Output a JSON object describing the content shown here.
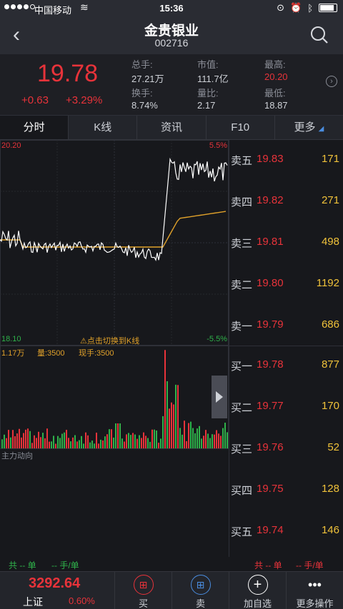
{
  "status": {
    "carrier": "中国移动",
    "time": "15:36"
  },
  "header": {
    "title": "金贵银业",
    "code": "002716"
  },
  "quote": {
    "price": "19.78",
    "change": "+0.63",
    "change_pct": "+3.29%",
    "stats": [
      {
        "k": "总手:",
        "v": "27.21万"
      },
      {
        "k": "市值:",
        "v": "111.7亿"
      },
      {
        "k": "最高:",
        "v": "20.20"
      },
      {
        "k": "换手:",
        "v": "8.74%"
      },
      {
        "k": "量比:",
        "v": "2.17"
      },
      {
        "k": "最低:",
        "v": "18.87"
      }
    ]
  },
  "tabs": [
    "分时",
    "K线",
    "资讯",
    "F10",
    "更多"
  ],
  "chart": {
    "price_high": "20.20",
    "price_low": "18.10",
    "pct_high": "5.5%",
    "pct_low": "-5.5%",
    "switch_hint": "⚠点击切换到K线",
    "vol_max": "1.17万",
    "vol_label": "量:3500",
    "cur_hand_label": "现手:3500",
    "main_flow_label": "主力动向"
  },
  "order_book": {
    "sell": [
      {
        "label": "卖五",
        "price": "19.83",
        "vol": "171"
      },
      {
        "label": "卖四",
        "price": "19.82",
        "vol": "271"
      },
      {
        "label": "卖三",
        "price": "19.81",
        "vol": "498"
      },
      {
        "label": "卖二",
        "price": "19.80",
        "vol": "1192"
      },
      {
        "label": "卖一",
        "price": "19.79",
        "vol": "686"
      }
    ],
    "buy": [
      {
        "label": "买一",
        "price": "19.78",
        "vol": "877"
      },
      {
        "label": "买二",
        "price": "19.77",
        "vol": "170"
      },
      {
        "label": "买三",
        "price": "19.76",
        "vol": "52"
      },
      {
        "label": "买四",
        "price": "19.75",
        "vol": "128"
      },
      {
        "label": "买五",
        "price": "19.74",
        "vol": "146"
      }
    ]
  },
  "footer_stats": {
    "left": "共 -- 单",
    "left2": "-- 手/单",
    "right": "共 -- 单",
    "right2": "-- 手/单"
  },
  "bottom": {
    "index_value": "3292.64",
    "index_name": "上证",
    "index_pct": "0.60%",
    "buy_label": "买",
    "sell_label": "卖",
    "add_label": "加自选",
    "more_label": "更多操作"
  },
  "colors": {
    "up": "#e8333a",
    "down": "#2fb14a",
    "avg": "#e0a12a",
    "price_line": "#ffffff"
  }
}
